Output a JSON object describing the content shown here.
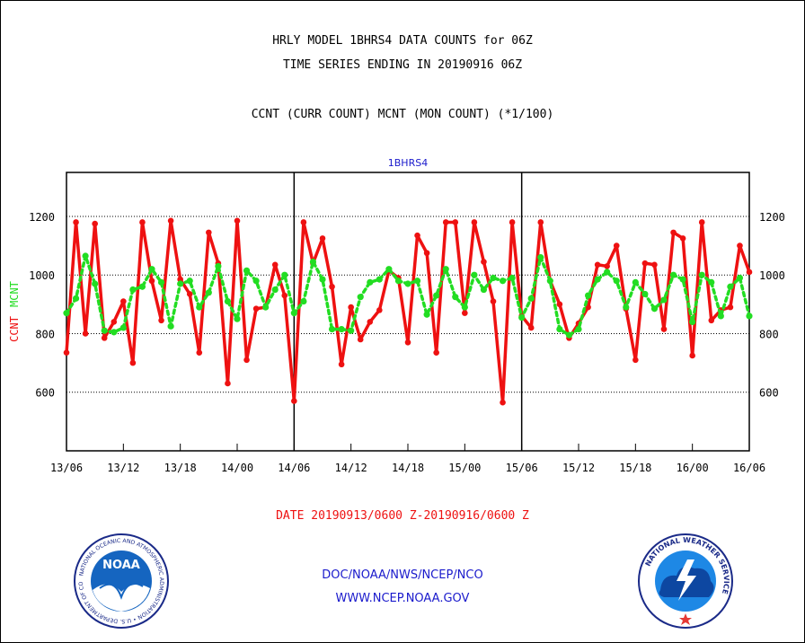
{
  "header": {
    "title_line1": "HRLY MODEL 1BHRS4 DATA COUNTS for 06Z",
    "title_line2": "TIME SERIES ENDING IN 20190916 06Z",
    "subtitle": "CCNT (CURR COUNT) MCNT (MON COUNT) (*1/100)"
  },
  "footer": {
    "date_range": "DATE 20190913/0600 Z-20190916/0600 Z",
    "agency_path": "DOC/NOAA/NWS/NCEP/NCO",
    "website": "WWW.NCEP.NOAA.GOV"
  },
  "logos": {
    "noaa_text": "NOAA",
    "noaa_ring": "NATIONAL OCEANIC AND ATMOSPHERIC ADMINISTRATION • U.S. DEPARTMENT OF COMMERCE",
    "nws_ring": "NATIONAL WEATHER SERVICE"
  },
  "chart_data": {
    "type": "line",
    "title": "1BHRS4",
    "ylabel_left": "CCNT",
    "ylabel_right": "MCNT",
    "ylim": [
      400,
      1350
    ],
    "yticks": [
      600,
      800,
      1000,
      1200
    ],
    "xlim": [
      0,
      72
    ],
    "xticks": [
      {
        "x": 0,
        "label": "13/06"
      },
      {
        "x": 6,
        "label": "13/12"
      },
      {
        "x": 12,
        "label": "13/18"
      },
      {
        "x": 18,
        "label": "14/00"
      },
      {
        "x": 24,
        "label": "14/06"
      },
      {
        "x": 30,
        "label": "14/12"
      },
      {
        "x": 36,
        "label": "14/18"
      },
      {
        "x": 42,
        "label": "15/00"
      },
      {
        "x": 48,
        "label": "15/06"
      },
      {
        "x": 54,
        "label": "15/12"
      },
      {
        "x": 60,
        "label": "15/18"
      },
      {
        "x": 66,
        "label": "16/00"
      },
      {
        "x": 72,
        "label": "16/06"
      }
    ],
    "day_boundaries": [
      24,
      48
    ],
    "grid": "horizontal dotted",
    "series": [
      {
        "name": "CCNT",
        "color": "#ee1111",
        "style": "solid",
        "values": [
          735,
          1180,
          800,
          1175,
          785,
          840,
          910,
          700,
          1180,
          980,
          845,
          1185,
          985,
          935,
          735,
          1145,
          1040,
          630,
          1185,
          710,
          885,
          890,
          1035,
          930,
          570,
          1180,
          1040,
          1125,
          960,
          695,
          890,
          780,
          840,
          880,
          1015,
          990,
          770,
          1135,
          1075,
          735,
          1180,
          1180,
          870,
          1180,
          1045,
          910,
          565,
          1180,
          860,
          820,
          1180,
          980,
          900,
          785,
          835,
          890,
          1035,
          1030,
          1100,
          885,
          710,
          1040,
          1035,
          815,
          1145,
          1125,
          725,
          1180,
          845,
          880,
          890,
          1100,
          1010
        ]
      },
      {
        "name": "MCNT",
        "color": "#22dd22",
        "style": "dotted",
        "values": [
          870,
          920,
          1065,
          970,
          810,
          805,
          820,
          950,
          960,
          1020,
          975,
          825,
          970,
          980,
          890,
          940,
          1030,
          910,
          850,
          1015,
          980,
          890,
          950,
          1000,
          870,
          910,
          1045,
          985,
          815,
          815,
          810,
          925,
          975,
          985,
          1020,
          980,
          970,
          980,
          865,
          930,
          1020,
          925,
          890,
          1000,
          950,
          990,
          980,
          990,
          855,
          920,
          1060,
          980,
          815,
          795,
          815,
          930,
          985,
          1010,
          980,
          890,
          975,
          935,
          885,
          915,
          1000,
          985,
          840,
          1000,
          975,
          860,
          960,
          990,
          860
        ]
      }
    ]
  }
}
